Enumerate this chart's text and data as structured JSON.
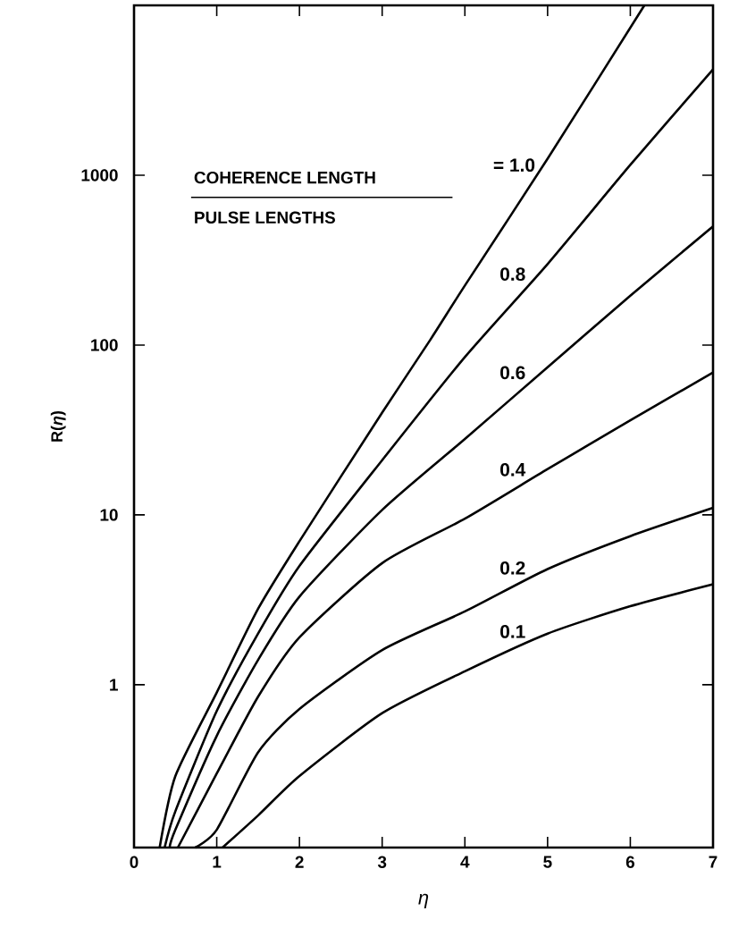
{
  "chart_data": {
    "type": "line",
    "xlabel": "η",
    "ylabel": "R(*η*)",
    "annotations": [
      "COHERENCE LENGTH",
      "PULSE LENGTHS"
    ],
    "xlim": [
      0,
      7
    ],
    "ylim": [
      0.11,
      10000
    ],
    "xticks": [
      0,
      1,
      2,
      3,
      4,
      5,
      6,
      7
    ],
    "yticks": [
      1,
      10,
      100,
      1000
    ],
    "log": "y",
    "grid": false,
    "marker": "none",
    "line_style": "solid",
    "series": [
      {
        "name": "= 1.0",
        "color": "#000000",
        "x": [
          0.31,
          0.5,
          1,
          1.5,
          2,
          3,
          3.58,
          4,
          5,
          6.17
        ],
        "values": [
          0.11,
          0.29,
          0.9,
          2.8,
          7,
          40,
          107,
          224,
          1250,
          10000
        ]
      },
      {
        "name": "0.8",
        "color": "#000000",
        "x": [
          0.37,
          0.5,
          1,
          1.5,
          2,
          3,
          4,
          5,
          6,
          7
        ],
        "values": [
          0.11,
          0.18,
          0.7,
          2,
          5,
          21,
          85,
          300,
          1150,
          4200
        ]
      },
      {
        "name": "0.6",
        "color": "#000000",
        "x": [
          0.43,
          0.5,
          1,
          1.5,
          2,
          3,
          4,
          5,
          6,
          7
        ],
        "values": [
          0.11,
          0.14,
          0.5,
          1.4,
          3.3,
          10.7,
          28,
          74,
          195,
          500
        ]
      },
      {
        "name": "0.4",
        "color": "#000000",
        "x": [
          0.53,
          1,
          1.5,
          2,
          3,
          4,
          5,
          6,
          7
        ],
        "values": [
          0.11,
          0.3,
          0.85,
          1.9,
          5.2,
          9.5,
          18.6,
          36,
          69
        ]
      },
      {
        "name": "0.2",
        "color": "#000000",
        "x": [
          0.74,
          1,
          1.5,
          2,
          3,
          4,
          5,
          6,
          7
        ],
        "values": [
          0.11,
          0.14,
          0.4,
          0.72,
          1.6,
          2.7,
          4.8,
          7.5,
          11
        ]
      },
      {
        "name": "0.1",
        "color": "#000000",
        "x": [
          1.07,
          1.5,
          2,
          3,
          4,
          5,
          6,
          7
        ],
        "values": [
          0.11,
          0.17,
          0.29,
          0.68,
          1.2,
          2,
          2.9,
          3.9
        ]
      }
    ]
  }
}
